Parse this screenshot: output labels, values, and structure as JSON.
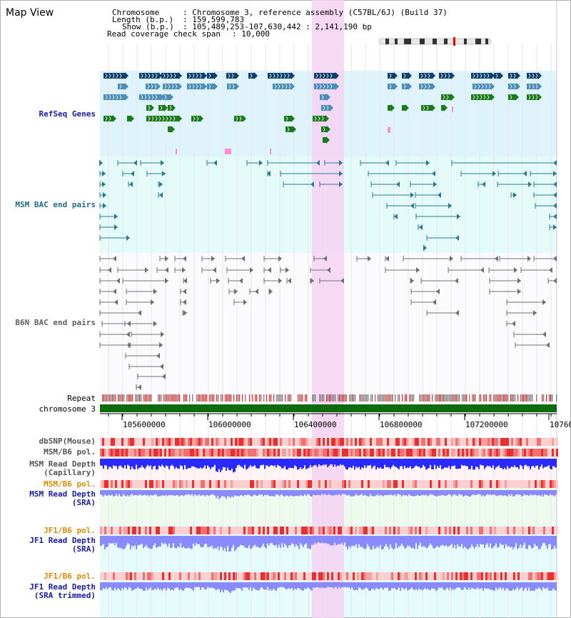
{
  "view_title": "Map View",
  "info": {
    "chromosome_label": "Chromosome",
    "chromosome_value": ": Chromosome 3, reference assembly (C57BL/6J) (Build 37)",
    "length_label": "Length (b.p.)",
    "length_value": ": 159,599,783",
    "show_label": "Show (b.p.)",
    "show_value": ": 105,489,253-107,630,442 : 2,141,190 bp",
    "coverage_label": "Read coverage check span",
    "coverage_value": ": 10,000"
  },
  "tracks": {
    "refseq": "RefSeq Genes",
    "msm_bac": "MSM BAC end pairs",
    "b6n_bac": "B6N BAC end pairs",
    "repeat": "Repeat",
    "chromosome": "chromosome 3",
    "dbsnp": "dbSNP(Mouse)",
    "msm_b6_pol": "MSM/B6 pol.",
    "msm_depth_cap_1": "MSM Read Depth",
    "msm_depth_cap_2": "(Capillary)",
    "msm_b6_pol_sra": "MSM/B6 pol.",
    "msm_depth_sra_1": "MSM Read Depth",
    "msm_depth_sra_2": "(SRA)",
    "jf1_b6_pol": "JF1/B6 pol.",
    "jf1_depth_sra_1": "JF1 Read Depth",
    "jf1_depth_sra_2": "(SRA)",
    "jf1_b6_pol_trim": "JF1/B6 pol.",
    "jf1_depth_trim_1": "JF1 Read Depth",
    "jf1_depth_trim_2": "(SRA trimmed)"
  },
  "axis": {
    "ticks": [
      "105600000",
      "106000000",
      "106400000",
      "106800000",
      "107200000",
      "10760"
    ]
  },
  "colors": {
    "refseq_bg": "#dff3fb",
    "msm_bg": "#e4fbf9",
    "highlight": "#f6d2f2",
    "gene_navy": "#0f3f6e",
    "gene_steel": "#4a8db8",
    "gene_green": "#1c7a1c",
    "bac_teal": "#2d7a8f",
    "bac_gray": "#707070",
    "chromosome_bar": "#0e6b0e",
    "depth_blue": "#2a2aff",
    "depth_violet": "#8a8aff",
    "pol_red": "#e83030",
    "label_blue": "#1a1aa8",
    "label_orange": "#e08a00"
  }
}
